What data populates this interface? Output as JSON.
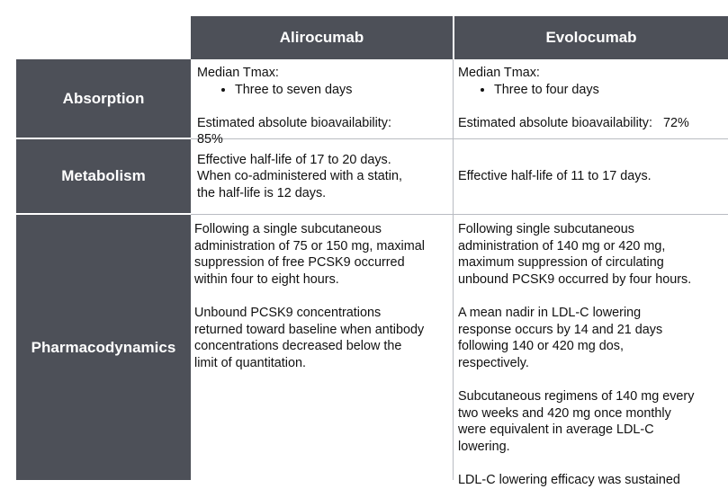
{
  "header": {
    "col1": "Alirocumab",
    "col2": "Evolocumab"
  },
  "rows": {
    "absorption": {
      "label": "Absorption",
      "alirocumab": {
        "tmax_label": "Median Tmax:",
        "tmax_value": "Three to seven days",
        "bio": "Estimated absolute bioavailability:",
        "bio_cut": "85%"
      },
      "evolocumab": {
        "tmax_label": "Median Tmax:",
        "tmax_value": "Three to four days",
        "bio": "Estimated absolute bioavailability:   72%"
      }
    },
    "metabolism": {
      "label": "Metabolism",
      "alirocumab": {
        "line1": "Effective half-life of 17 to 20 days.",
        "line2": "When co-administered with a statin,",
        "line3": "the half-life is 12 days."
      },
      "evolocumab": {
        "line1": "Effective half-life of 11 to 17 days."
      }
    },
    "pharmacodynamics": {
      "label": "Pharmacodynamics",
      "alirocumab": {
        "p1": [
          "Following a single subcutaneous",
          "administration of 75 or 150 mg, maximal",
          "suppression of free PCSK9 occurred",
          "within four to eight hours."
        ],
        "p2": [
          "Unbound PCSK9 concentrations",
          "returned toward baseline when antibody",
          "concentrations decreased below the",
          "limit of quantitation."
        ]
      },
      "evolocumab": {
        "p1": [
          "Following single subcutaneous",
          "administration of 140 mg or 420 mg,",
          "maximum suppression of circulating",
          "unbound PCSK9 occurred by four hours."
        ],
        "p2": [
          "A mean nadir in LDL-C lowering",
          "response occurs by 14 and 21 days",
          "following 140 or 420 mg dos,",
          "respectively."
        ],
        "p3": [
          "Subcutaneous regimens of 140 mg every",
          "two weeks and 420 mg once monthly",
          "were equivalent in average LDL-C",
          "lowering."
        ],
        "p4_cut": "LDL-C lowering efficacy was sustained"
      }
    }
  }
}
